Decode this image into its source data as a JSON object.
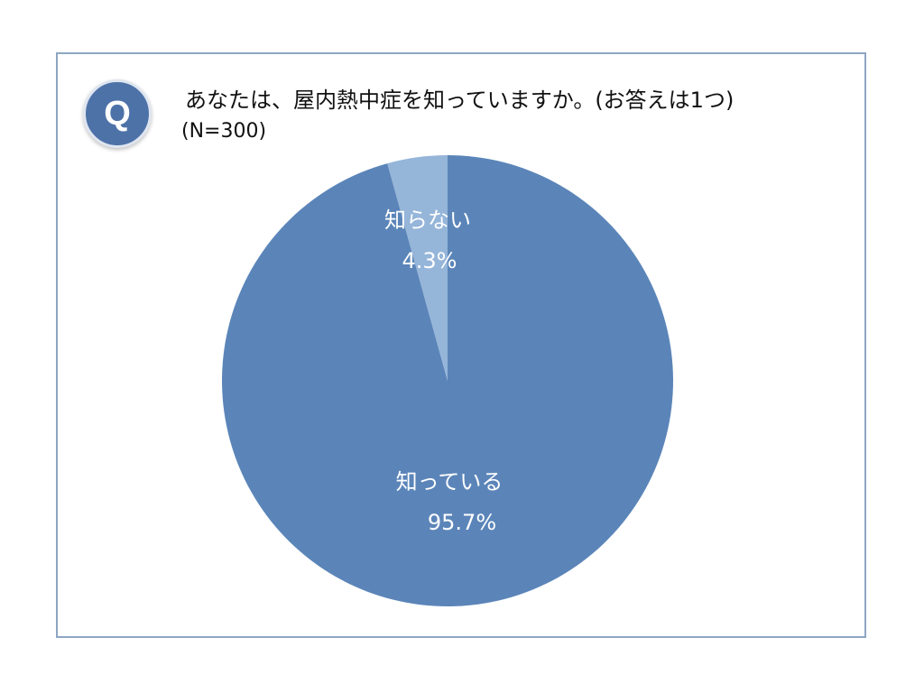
{
  "question": {
    "badge": "Q",
    "text": "あなたは、屋内熱中症を知っていますか。(お答えは1つ)",
    "sample": "(N=300)"
  },
  "colors": {
    "frame_border": "#8ea6c3",
    "badge": "#4d72a8",
    "slice_known": "#5b85b9",
    "slice_unknown": "#95b5d9"
  },
  "chart_data": {
    "type": "pie",
    "slices": [
      {
        "label": "知っている",
        "value": 95.7,
        "value_label": "95.7%",
        "color": "#5b85b9"
      },
      {
        "label": "知らない",
        "value": 4.3,
        "value_label": "4.3%",
        "color": "#95b5d9"
      }
    ]
  }
}
